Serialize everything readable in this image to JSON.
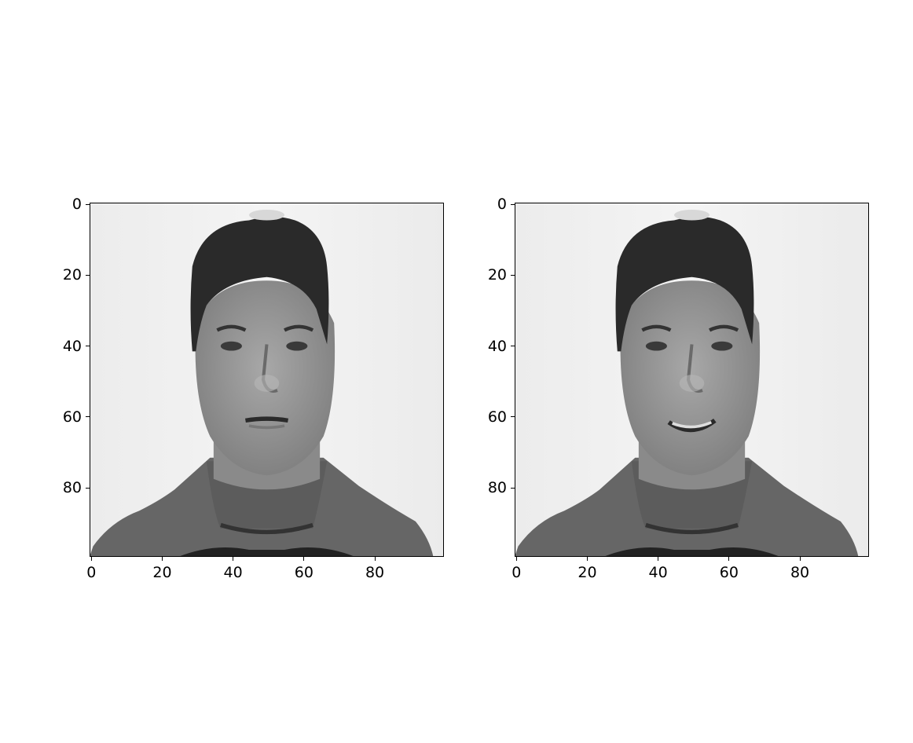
{
  "figure": {
    "panels": [
      {
        "id": "left",
        "description_expression": "neutral",
        "xticks": [
          "0",
          "20",
          "40",
          "60",
          "80"
        ],
        "yticks": [
          "0",
          "20",
          "40",
          "60",
          "80"
        ],
        "image_size": [
          100,
          100
        ]
      },
      {
        "id": "right",
        "description_expression": "smiling",
        "xticks": [
          "0",
          "20",
          "40",
          "60",
          "80"
        ],
        "yticks": [
          "0",
          "20",
          "40",
          "60",
          "80"
        ],
        "image_size": [
          100,
          100
        ]
      }
    ],
    "colormap": "gray"
  }
}
